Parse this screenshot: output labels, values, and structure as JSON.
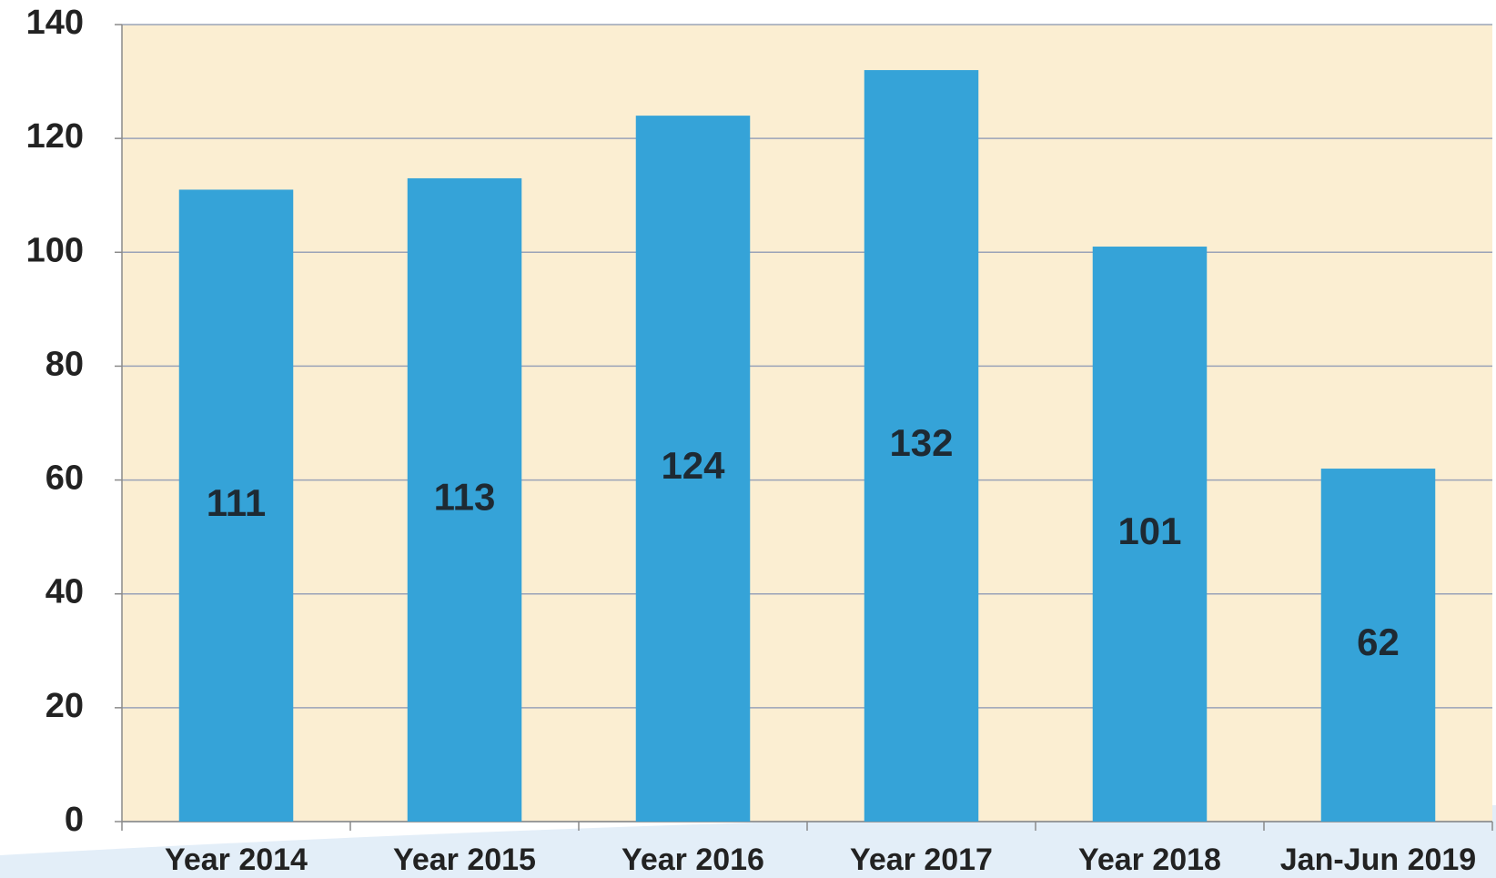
{
  "chart_data": {
    "type": "bar",
    "categories": [
      "Year 2014",
      "Year 2015",
      "Year 2016",
      "Year 2017",
      "Year 2018",
      "Jan-Jun 2019"
    ],
    "values": [
      111,
      113,
      124,
      132,
      101,
      62
    ],
    "color": "#35a3d8",
    "ylim": [
      0,
      140
    ],
    "yticks": [
      0,
      20,
      40,
      60,
      80,
      100,
      120,
      140
    ],
    "grid": true
  }
}
